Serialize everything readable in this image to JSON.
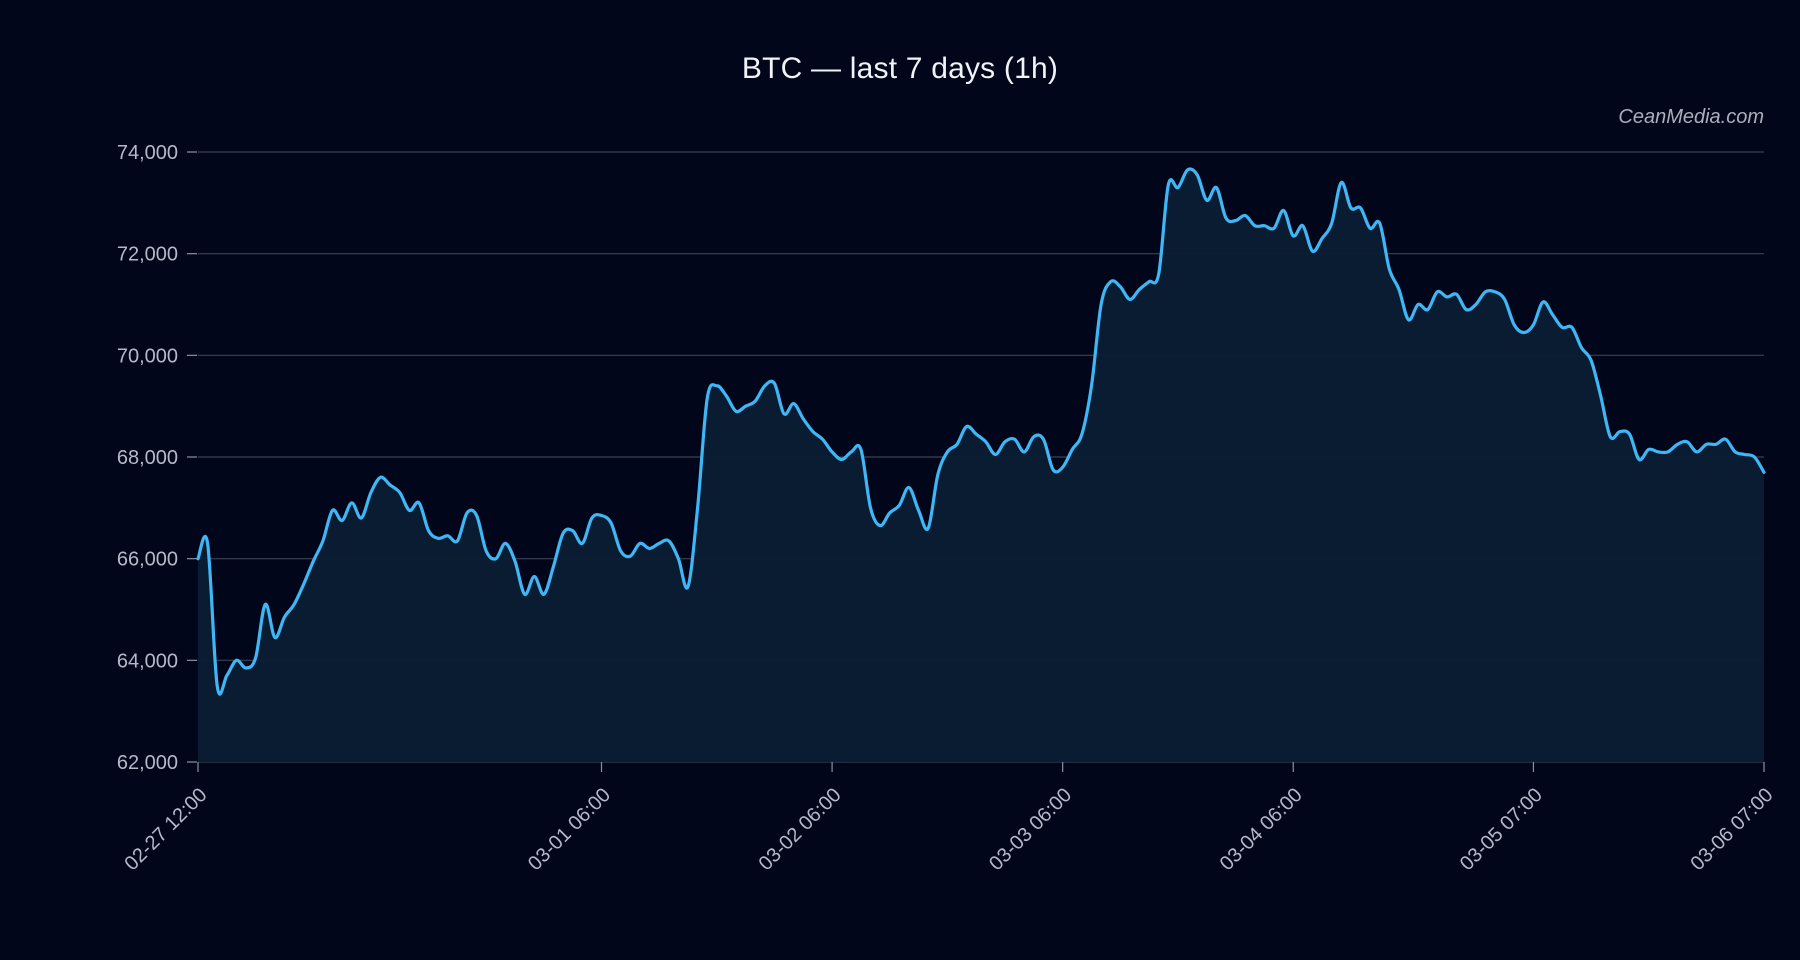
{
  "chart_data": {
    "type": "area",
    "title": "BTC — last 7 days (1h)",
    "xlabel": "",
    "ylabel": "",
    "ylim": [
      62000,
      74000
    ],
    "y_ticks": [
      "74,000",
      "72,000",
      "70,000",
      "68,000",
      "66,000",
      "64,000",
      "62,000"
    ],
    "x_ticks": [
      "02-27 12:00",
      "03-01 06:00",
      "03-02 06:00",
      "03-03 06:00",
      "03-04 06:00",
      "03-05 07:00",
      "03-06 07:00"
    ],
    "grid": true,
    "colors": {
      "line": "#3fb6f5",
      "fill": "#0b1d33",
      "background": "#02061a",
      "grid": "#3a4254"
    },
    "series": [
      {
        "values": [
          [
            0,
            66000
          ],
          [
            1,
            66300
          ],
          [
            2,
            63500
          ],
          [
            3,
            63700
          ],
          [
            4,
            64000
          ],
          [
            5,
            63850
          ],
          [
            6,
            64050
          ],
          [
            7,
            65100
          ],
          [
            8,
            64450
          ],
          [
            9,
            64850
          ],
          [
            10,
            65100
          ],
          [
            11,
            65500
          ],
          [
            12,
            65950
          ],
          [
            13,
            66350
          ],
          [
            14,
            66950
          ],
          [
            15,
            66750
          ],
          [
            16,
            67100
          ],
          [
            17,
            66800
          ],
          [
            18,
            67300
          ],
          [
            19,
            67600
          ],
          [
            20,
            67450
          ],
          [
            21,
            67300
          ],
          [
            22,
            66950
          ],
          [
            23,
            67100
          ],
          [
            24,
            66550
          ],
          [
            25,
            66400
          ],
          [
            26,
            66450
          ],
          [
            27,
            66350
          ],
          [
            28,
            66900
          ],
          [
            29,
            66850
          ],
          [
            30,
            66150
          ],
          [
            31,
            66000
          ],
          [
            32,
            66300
          ],
          [
            33,
            65950
          ],
          [
            34,
            65300
          ],
          [
            35,
            65650
          ],
          [
            36,
            65300
          ],
          [
            37,
            65850
          ],
          [
            38,
            66500
          ],
          [
            39,
            66550
          ],
          [
            40,
            66300
          ],
          [
            41,
            66800
          ],
          [
            42,
            66850
          ],
          [
            43,
            66700
          ],
          [
            44,
            66150
          ],
          [
            45,
            66050
          ],
          [
            46,
            66300
          ],
          [
            47,
            66200
          ],
          [
            48,
            66300
          ],
          [
            49,
            66350
          ],
          [
            50,
            66000
          ],
          [
            51,
            65450
          ],
          [
            52,
            67000
          ],
          [
            53,
            69150
          ],
          [
            54,
            69400
          ],
          [
            55,
            69200
          ],
          [
            56,
            68900
          ],
          [
            57,
            69000
          ],
          [
            58,
            69100
          ],
          [
            59,
            69400
          ],
          [
            60,
            69450
          ],
          [
            61,
            68850
          ],
          [
            62,
            69050
          ],
          [
            63,
            68750
          ],
          [
            64,
            68500
          ],
          [
            65,
            68350
          ],
          [
            66,
            68100
          ],
          [
            67,
            67950
          ],
          [
            68,
            68100
          ],
          [
            69,
            68150
          ],
          [
            70,
            67000
          ],
          [
            71,
            66650
          ],
          [
            72,
            66900
          ],
          [
            73,
            67050
          ],
          [
            74,
            67400
          ],
          [
            75,
            66950
          ],
          [
            76,
            66600
          ],
          [
            77,
            67650
          ],
          [
            78,
            68100
          ],
          [
            79,
            68250
          ],
          [
            80,
            68600
          ],
          [
            81,
            68450
          ],
          [
            82,
            68300
          ],
          [
            83,
            68050
          ],
          [
            84,
            68300
          ],
          [
            85,
            68350
          ],
          [
            86,
            68100
          ],
          [
            87,
            68400
          ],
          [
            88,
            68350
          ],
          [
            89,
            67750
          ],
          [
            90,
            67800
          ],
          [
            91,
            68150
          ],
          [
            92,
            68450
          ],
          [
            93,
            69400
          ],
          [
            94,
            71000
          ],
          [
            95,
            71450
          ],
          [
            96,
            71350
          ],
          [
            97,
            71100
          ],
          [
            98,
            71300
          ],
          [
            99,
            71450
          ],
          [
            100,
            71600
          ],
          [
            101,
            73350
          ],
          [
            102,
            73300
          ],
          [
            103,
            73650
          ],
          [
            104,
            73550
          ],
          [
            105,
            73050
          ],
          [
            106,
            73300
          ],
          [
            107,
            72700
          ],
          [
            108,
            72650
          ],
          [
            109,
            72750
          ],
          [
            110,
            72550
          ],
          [
            111,
            72550
          ],
          [
            112,
            72500
          ],
          [
            113,
            72850
          ],
          [
            114,
            72350
          ],
          [
            115,
            72550
          ],
          [
            116,
            72050
          ],
          [
            117,
            72300
          ],
          [
            118,
            72600
          ],
          [
            119,
            73400
          ],
          [
            120,
            72900
          ],
          [
            121,
            72900
          ],
          [
            122,
            72500
          ],
          [
            123,
            72600
          ],
          [
            124,
            71700
          ],
          [
            125,
            71300
          ],
          [
            126,
            70700
          ],
          [
            127,
            71000
          ],
          [
            128,
            70900
          ],
          [
            129,
            71250
          ],
          [
            130,
            71150
          ],
          [
            131,
            71200
          ],
          [
            132,
            70900
          ],
          [
            133,
            71000
          ],
          [
            134,
            71250
          ],
          [
            135,
            71250
          ],
          [
            136,
            71100
          ],
          [
            137,
            70600
          ],
          [
            138,
            70450
          ],
          [
            139,
            70600
          ],
          [
            140,
            71050
          ],
          [
            141,
            70800
          ],
          [
            142,
            70550
          ],
          [
            143,
            70550
          ],
          [
            144,
            70150
          ],
          [
            145,
            69900
          ],
          [
            146,
            69200
          ],
          [
            147,
            68400
          ],
          [
            148,
            68500
          ],
          [
            149,
            68450
          ],
          [
            150,
            67950
          ],
          [
            151,
            68150
          ],
          [
            152,
            68100
          ],
          [
            153,
            68100
          ],
          [
            154,
            68250
          ],
          [
            155,
            68300
          ],
          [
            156,
            68100
          ],
          [
            157,
            68250
          ],
          [
            158,
            68250
          ],
          [
            159,
            68350
          ],
          [
            160,
            68100
          ],
          [
            161,
            68050
          ],
          [
            162,
            68000
          ],
          [
            163,
            67700
          ]
        ]
      }
    ]
  },
  "watermark": "CeanMedia.com"
}
